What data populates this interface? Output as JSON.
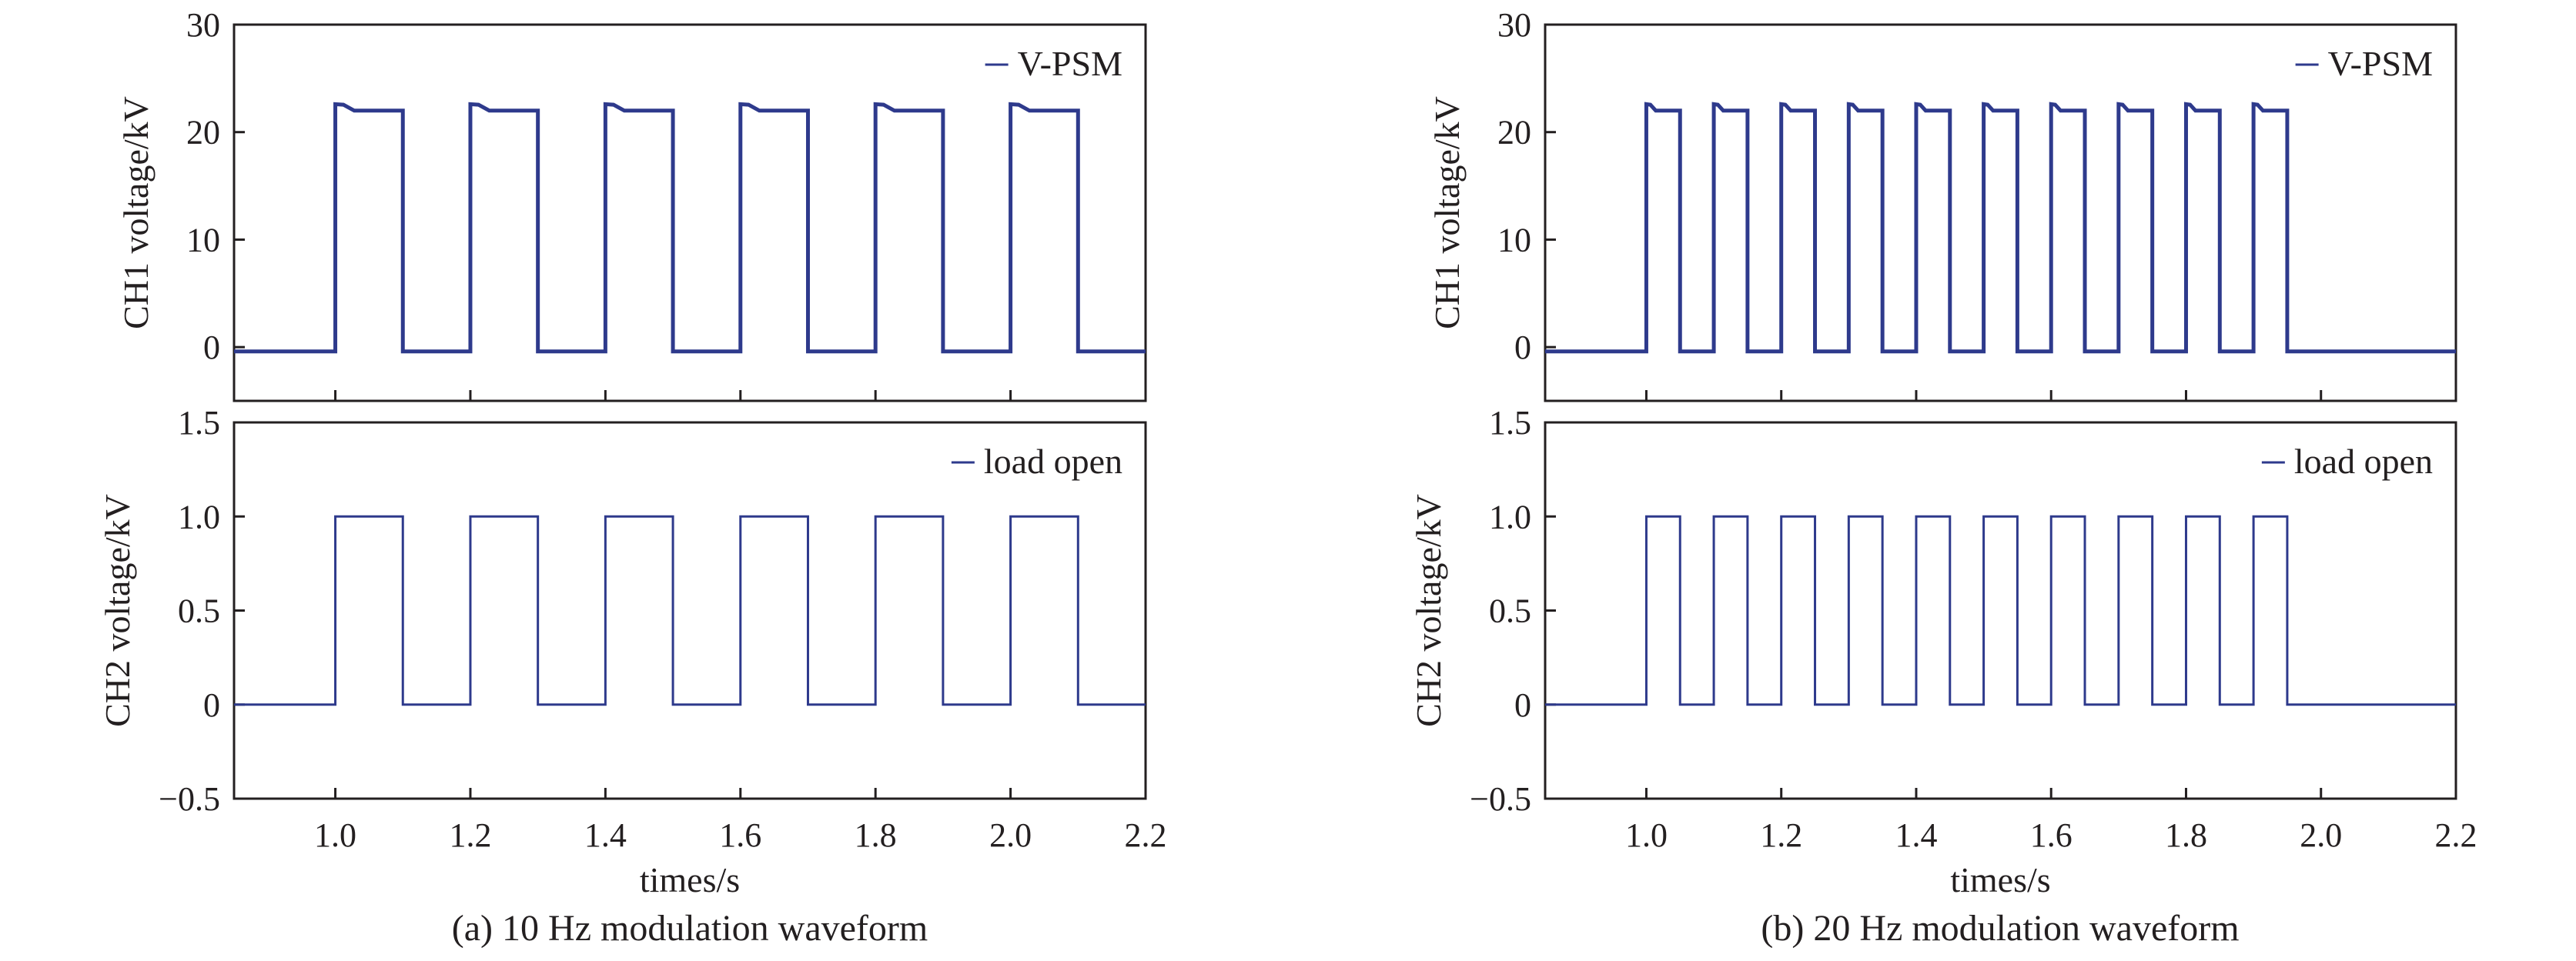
{
  "chart_data": [
    {
      "type": "line",
      "panel": "a",
      "caption": "(a) 10 Hz modulation waveform",
      "xlabel": "times/s",
      "xlim": [
        0.85,
        2.2
      ],
      "x_ticks": [
        "1.0",
        "1.2",
        "1.4",
        "1.6",
        "1.8",
        "2.0",
        "2.2"
      ],
      "subplots": [
        {
          "ylabel": "CH1 voltage/kV",
          "ylim": [
            -5,
            30
          ],
          "y_ticks": [
            "30",
            "20",
            "10",
            "0"
          ],
          "legend_position": "top-right",
          "series": [
            {
              "name": "V-PSM",
              "color": "#2e3a8c",
              "baseline": -0.4,
              "high_level": 22,
              "initial_peak": 22.6,
              "pulses": [
                [
                  1.0,
                  1.1
                ],
                [
                  1.2,
                  1.3
                ],
                [
                  1.4,
                  1.5
                ],
                [
                  1.6,
                  1.7
                ],
                [
                  1.8,
                  1.9
                ],
                [
                  2.0,
                  2.1
                ]
              ]
            }
          ]
        },
        {
          "ylabel": "CH2 voltage/kV",
          "ylim": [
            -0.5,
            1.5
          ],
          "y_ticks": [
            "1.5",
            "1.0",
            "0.5",
            "0",
            "−0.5"
          ],
          "legend_position": "top-right",
          "series": [
            {
              "name": "load open",
              "color": "#2e3a8c",
              "baseline": 0,
              "high_level": 1.0,
              "pulses": [
                [
                  1.0,
                  1.1
                ],
                [
                  1.2,
                  1.3
                ],
                [
                  1.4,
                  1.5
                ],
                [
                  1.6,
                  1.7
                ],
                [
                  1.8,
                  1.9
                ],
                [
                  2.0,
                  2.1
                ]
              ]
            }
          ]
        }
      ]
    },
    {
      "type": "line",
      "panel": "b",
      "caption": "(b) 20 Hz modulation waveform",
      "xlabel": "times/s",
      "xlim": [
        0.85,
        2.2
      ],
      "x_ticks": [
        "1.0",
        "1.2",
        "1.4",
        "1.6",
        "1.8",
        "2.0",
        "2.2"
      ],
      "subplots": [
        {
          "ylabel": "CH1 voltage/kV",
          "ylim": [
            -5,
            30
          ],
          "y_ticks": [
            "30",
            "20",
            "10",
            "0"
          ],
          "legend_position": "top-right",
          "series": [
            {
              "name": "V-PSM",
              "color": "#2e3a8c",
              "baseline": -0.4,
              "high_level": 22,
              "initial_peak": 22.6,
              "pulses": [
                [
                  1.0,
                  1.05
                ],
                [
                  1.1,
                  1.15
                ],
                [
                  1.2,
                  1.25
                ],
                [
                  1.3,
                  1.35
                ],
                [
                  1.4,
                  1.45
                ],
                [
                  1.5,
                  1.55
                ],
                [
                  1.6,
                  1.65
                ],
                [
                  1.7,
                  1.75
                ],
                [
                  1.8,
                  1.85
                ],
                [
                  1.9,
                  1.95
                ]
              ]
            }
          ]
        },
        {
          "ylabel": "CH2 voltage/kV",
          "ylim": [
            -0.5,
            1.5
          ],
          "y_ticks": [
            "1.5",
            "1.0",
            "0.5",
            "0",
            "−0.5"
          ],
          "legend_position": "top-right",
          "series": [
            {
              "name": "load open",
              "color": "#2e3a8c",
              "baseline": 0,
              "high_level": 1.0,
              "pulses": [
                [
                  1.0,
                  1.05
                ],
                [
                  1.1,
                  1.15
                ],
                [
                  1.2,
                  1.25
                ],
                [
                  1.3,
                  1.35
                ],
                [
                  1.4,
                  1.45
                ],
                [
                  1.5,
                  1.55
                ],
                [
                  1.6,
                  1.65
                ],
                [
                  1.7,
                  1.75
                ],
                [
                  1.8,
                  1.85
                ],
                [
                  1.9,
                  1.95
                ]
              ]
            }
          ]
        }
      ]
    }
  ]
}
